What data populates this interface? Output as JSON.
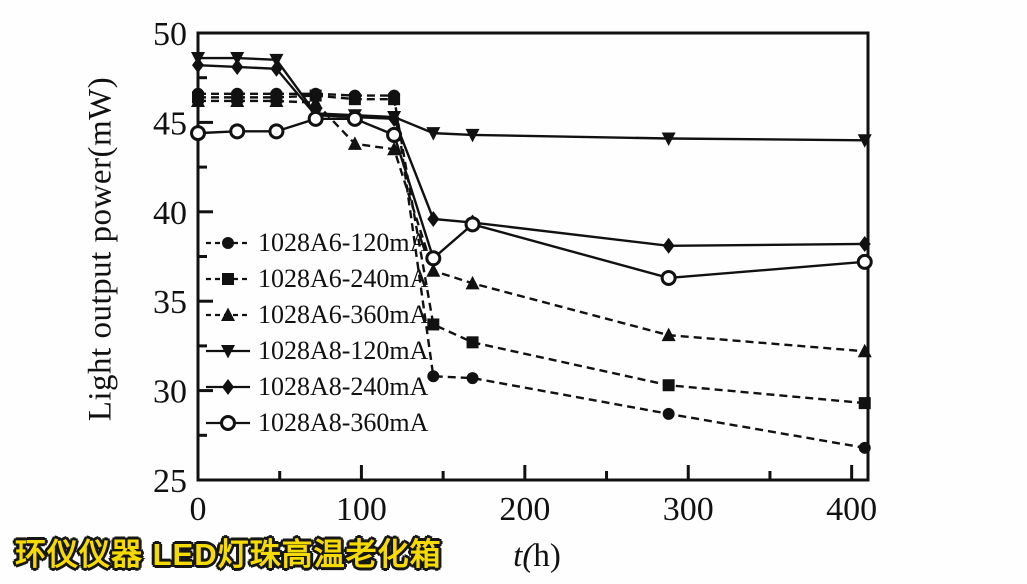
{
  "watermark": "环仪仪器 LED灯珠高温老化箱",
  "colors": {
    "ink": "#111111",
    "watermark_fill": "#F6DB00",
    "watermark_outline": "#161616",
    "background": "#FEFEFE"
  },
  "chart_data": {
    "type": "line",
    "title": "",
    "xlabel": "t(h)",
    "ylabel": "Light output power(mW)",
    "xlim": [
      0,
      410
    ],
    "ylim": [
      25,
      50
    ],
    "x_ticks_major": [
      0,
      100,
      200,
      300,
      400
    ],
    "x_ticks_minor": [
      50,
      150,
      250,
      350
    ],
    "y_ticks_major": [
      25,
      30,
      35,
      40,
      45,
      50
    ],
    "y_ticks_minor": [
      27.5,
      32.5,
      37.5,
      42.5,
      47.5
    ],
    "grid": false,
    "legend_position": "inside-left",
    "x": [
      0,
      24,
      48,
      72,
      96,
      120,
      144,
      168,
      288,
      408
    ],
    "series": [
      {
        "name": "1028A6-120mA",
        "marker": "circle-filled",
        "line": "dashed",
        "values": [
          46.6,
          46.6,
          46.6,
          46.6,
          46.5,
          46.5,
          30.8,
          30.7,
          28.7,
          26.8
        ]
      },
      {
        "name": "1028A6-240mA",
        "marker": "square-filled",
        "line": "dashed",
        "values": [
          46.4,
          46.4,
          46.4,
          46.5,
          46.3,
          46.3,
          33.7,
          32.7,
          30.3,
          29.3
        ]
      },
      {
        "name": "1028A6-360mA",
        "marker": "triangle-up-filled",
        "line": "dashed",
        "values": [
          46.2,
          46.2,
          46.2,
          46.1,
          43.8,
          43.5,
          36.7,
          36.0,
          33.1,
          32.2
        ]
      },
      {
        "name": "1028A8-120mA",
        "marker": "triangle-down-filled",
        "line": "solid",
        "values": [
          48.6,
          48.6,
          48.5,
          45.5,
          45.4,
          45.3,
          44.4,
          44.3,
          44.1,
          44.0
        ]
      },
      {
        "name": "1028A8-240mA",
        "marker": "diamond-filled",
        "line": "solid",
        "values": [
          48.2,
          48.1,
          48.0,
          45.4,
          45.3,
          45.2,
          39.6,
          39.4,
          38.1,
          38.2
        ]
      },
      {
        "name": "1028A8-360mA",
        "marker": "circle-open",
        "line": "solid",
        "values": [
          44.4,
          44.5,
          44.5,
          45.2,
          45.2,
          44.3,
          37.4,
          39.3,
          36.3,
          37.2
        ]
      }
    ]
  }
}
